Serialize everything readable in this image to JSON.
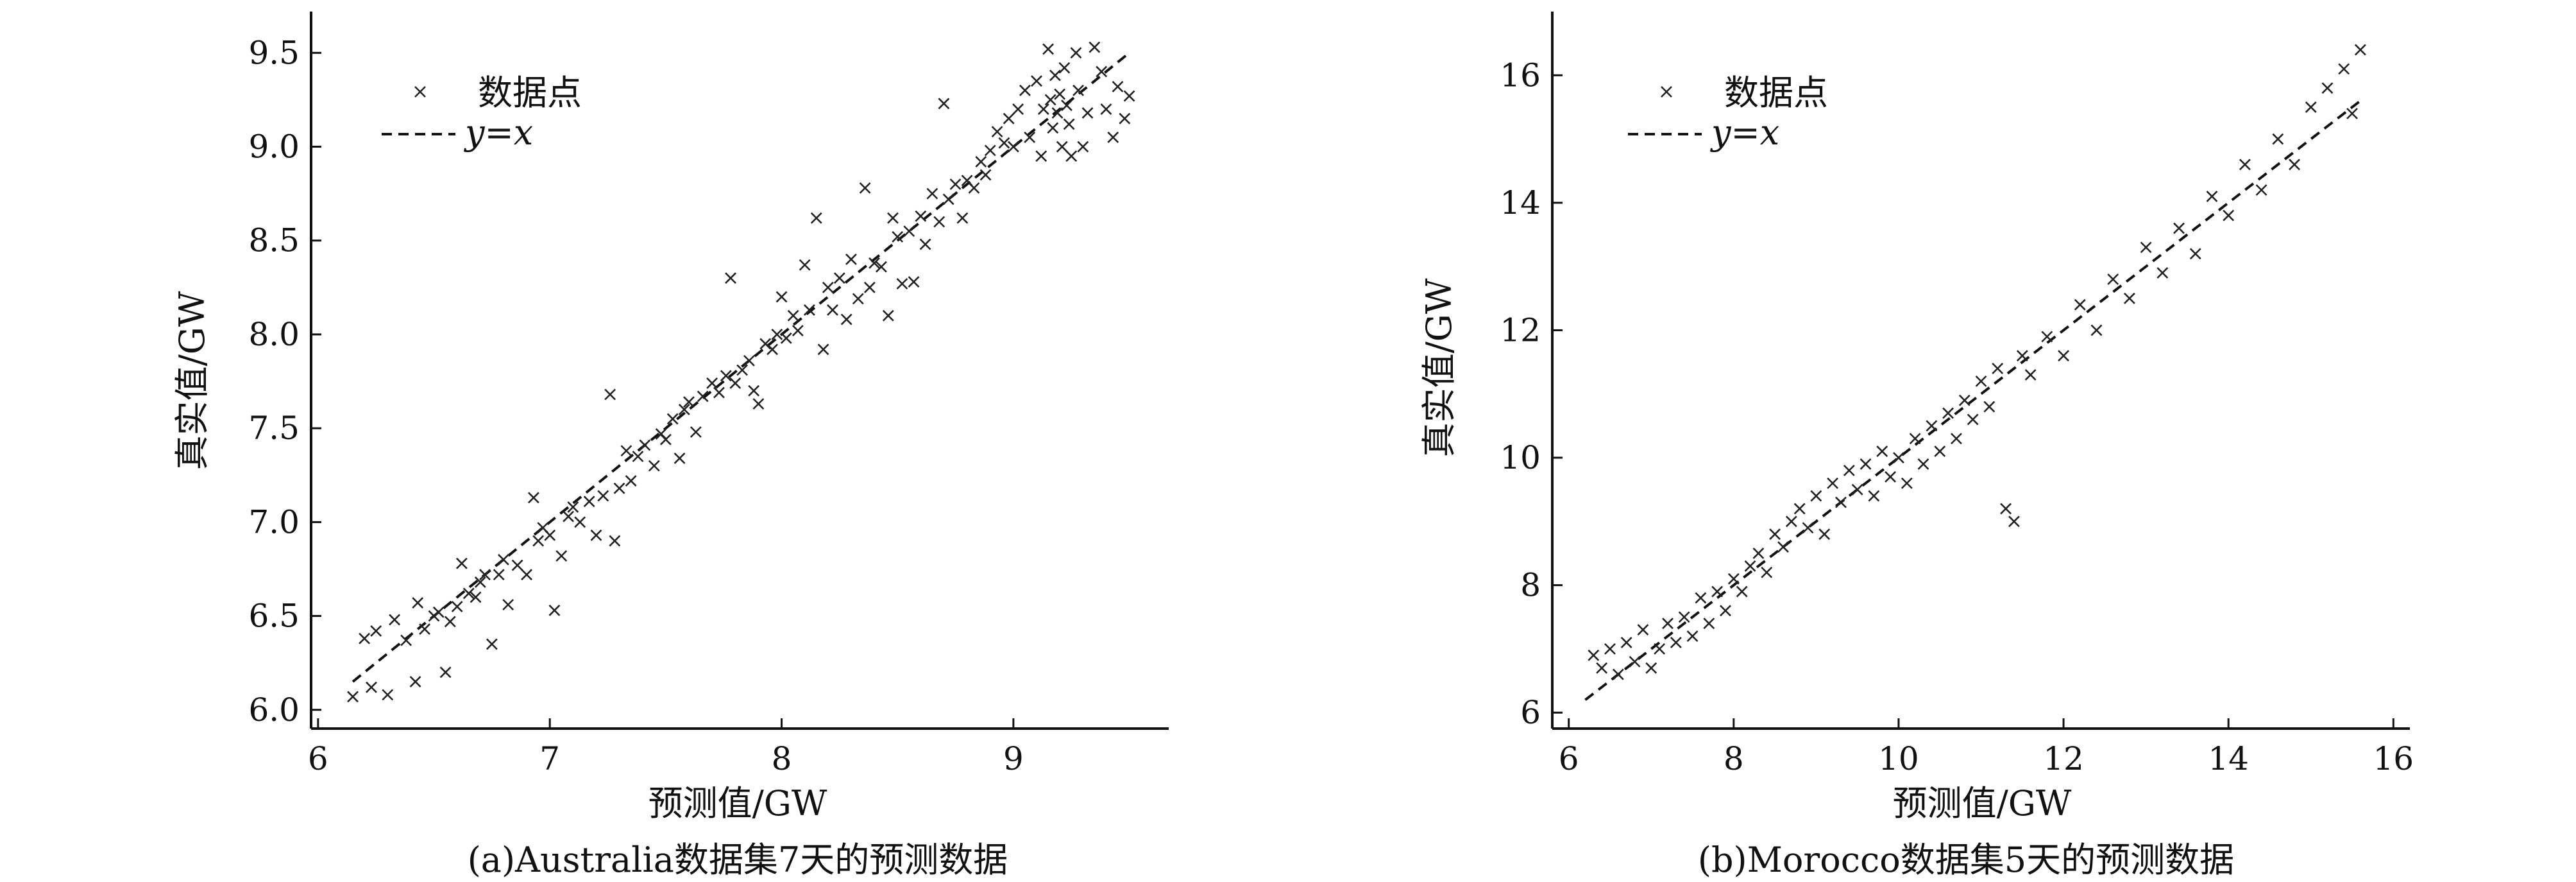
{
  "chart_data": [
    {
      "type": "scatter",
      "caption": "(a)Australia数据集7天的预测数据",
      "xlabel": "预测值/GW",
      "ylabel": "真实值/GW",
      "xlim": [
        5.97,
        9.67
      ],
      "ylim": [
        5.9,
        9.72
      ],
      "xticks": [
        6,
        7,
        8,
        9
      ],
      "yticks": [
        6.0,
        6.5,
        7.0,
        7.5,
        8.0,
        8.5,
        9.0,
        9.5
      ],
      "xtick_labels": [
        "6",
        "7",
        "8",
        "9"
      ],
      "ytick_labels": [
        "6.0",
        "6.5",
        "7.0",
        "7.5",
        "8.0",
        "8.5",
        "9.0",
        "9.5"
      ],
      "legend": {
        "position": "top-left",
        "entries": [
          {
            "label": "数据点",
            "marker": "x"
          },
          {
            "label": "y=x",
            "style": "dashed"
          }
        ]
      },
      "reference_line": {
        "label": "y=x",
        "x": [
          6.15,
          9.5
        ],
        "y": [
          6.15,
          9.5
        ]
      },
      "series": [
        {
          "name": "数据点",
          "marker": "x",
          "points": [
            [
              6.15,
              6.07
            ],
            [
              6.2,
              6.38
            ],
            [
              6.25,
              6.42
            ],
            [
              6.23,
              6.12
            ],
            [
              6.3,
              6.08
            ],
            [
              6.33,
              6.48
            ],
            [
              6.38,
              6.37
            ],
            [
              6.42,
              6.15
            ],
            [
              6.43,
              6.57
            ],
            [
              6.46,
              6.43
            ],
            [
              6.5,
              6.5
            ],
            [
              6.52,
              6.52
            ],
            [
              6.55,
              6.2
            ],
            [
              6.57,
              6.47
            ],
            [
              6.6,
              6.55
            ],
            [
              6.62,
              6.78
            ],
            [
              6.65,
              6.62
            ],
            [
              6.68,
              6.6
            ],
            [
              6.7,
              6.68
            ],
            [
              6.72,
              6.72
            ],
            [
              6.75,
              6.35
            ],
            [
              6.78,
              6.72
            ],
            [
              6.8,
              6.8
            ],
            [
              6.82,
              6.56
            ],
            [
              6.86,
              6.77
            ],
            [
              6.9,
              6.72
            ],
            [
              6.93,
              7.13
            ],
            [
              6.95,
              6.9
            ],
            [
              6.97,
              6.97
            ],
            [
              7.0,
              6.93
            ],
            [
              7.02,
              6.53
            ],
            [
              7.05,
              6.82
            ],
            [
              7.08,
              7.03
            ],
            [
              7.1,
              7.08
            ],
            [
              7.13,
              7.0
            ],
            [
              7.17,
              7.11
            ],
            [
              7.2,
              6.93
            ],
            [
              7.23,
              7.14
            ],
            [
              7.26,
              7.68
            ],
            [
              7.28,
              6.9
            ],
            [
              7.3,
              7.18
            ],
            [
              7.33,
              7.38
            ],
            [
              7.35,
              7.22
            ],
            [
              7.38,
              7.35
            ],
            [
              7.41,
              7.41
            ],
            [
              7.45,
              7.3
            ],
            [
              7.48,
              7.47
            ],
            [
              7.5,
              7.44
            ],
            [
              7.53,
              7.55
            ],
            [
              7.56,
              7.34
            ],
            [
              7.58,
              7.6
            ],
            [
              7.6,
              7.64
            ],
            [
              7.63,
              7.48
            ],
            [
              7.66,
              7.67
            ],
            [
              7.7,
              7.74
            ],
            [
              7.73,
              7.69
            ],
            [
              7.76,
              7.78
            ],
            [
              7.78,
              8.3
            ],
            [
              7.8,
              7.74
            ],
            [
              7.83,
              7.81
            ],
            [
              7.86,
              7.86
            ],
            [
              7.88,
              7.7
            ],
            [
              7.9,
              7.63
            ],
            [
              7.93,
              7.95
            ],
            [
              7.96,
              7.92
            ],
            [
              7.98,
              8.0
            ],
            [
              8.0,
              8.2
            ],
            [
              8.02,
              7.98
            ],
            [
              8.05,
              8.1
            ],
            [
              8.07,
              8.02
            ],
            [
              8.1,
              8.37
            ],
            [
              8.12,
              8.13
            ],
            [
              8.15,
              8.62
            ],
            [
              8.18,
              7.92
            ],
            [
              8.2,
              8.25
            ],
            [
              8.22,
              8.13
            ],
            [
              8.25,
              8.3
            ],
            [
              8.28,
              8.08
            ],
            [
              8.3,
              8.4
            ],
            [
              8.33,
              8.19
            ],
            [
              8.36,
              8.78
            ],
            [
              8.38,
              8.25
            ],
            [
              8.4,
              8.38
            ],
            [
              8.43,
              8.36
            ],
            [
              8.46,
              8.1
            ],
            [
              8.48,
              8.62
            ],
            [
              8.5,
              8.52
            ],
            [
              8.52,
              8.27
            ],
            [
              8.55,
              8.55
            ],
            [
              8.57,
              8.28
            ],
            [
              8.6,
              8.63
            ],
            [
              8.62,
              8.48
            ],
            [
              8.65,
              8.75
            ],
            [
              8.68,
              8.6
            ],
            [
              8.7,
              9.23
            ],
            [
              8.72,
              8.72
            ],
            [
              8.75,
              8.8
            ],
            [
              8.78,
              8.62
            ],
            [
              8.8,
              8.82
            ],
            [
              8.83,
              8.78
            ],
            [
              8.86,
              8.92
            ],
            [
              8.88,
              8.85
            ],
            [
              8.9,
              8.98
            ],
            [
              8.93,
              9.08
            ],
            [
              8.96,
              9.02
            ],
            [
              8.98,
              9.15
            ],
            [
              9.0,
              9.0
            ],
            [
              9.02,
              9.2
            ],
            [
              9.05,
              9.3
            ],
            [
              9.07,
              9.05
            ],
            [
              9.1,
              9.35
            ],
            [
              9.12,
              8.95
            ],
            [
              9.13,
              9.2
            ],
            [
              9.15,
              9.52
            ],
            [
              9.16,
              9.25
            ],
            [
              9.17,
              9.1
            ],
            [
              9.18,
              9.38
            ],
            [
              9.19,
              9.18
            ],
            [
              9.2,
              9.28
            ],
            [
              9.21,
              9.0
            ],
            [
              9.22,
              9.42
            ],
            [
              9.23,
              9.22
            ],
            [
              9.24,
              9.12
            ],
            [
              9.25,
              8.95
            ],
            [
              9.27,
              9.5
            ],
            [
              9.28,
              9.3
            ],
            [
              9.3,
              9.0
            ],
            [
              9.32,
              9.18
            ],
            [
              9.35,
              9.53
            ],
            [
              9.38,
              9.4
            ],
            [
              9.4,
              9.2
            ],
            [
              9.43,
              9.05
            ],
            [
              9.45,
              9.32
            ],
            [
              9.48,
              9.15
            ],
            [
              9.5,
              9.27
            ]
          ]
        }
      ]
    },
    {
      "type": "scatter",
      "caption": "(b)Morocco数据集5天的预测数据",
      "xlabel": "预测值/GW",
      "ylabel": "真实值/GW",
      "xlim": [
        5.8,
        16.2
      ],
      "ylim": [
        5.75,
        17.0
      ],
      "xticks": [
        6,
        8,
        10,
        12,
        14,
        16
      ],
      "yticks": [
        6,
        8,
        10,
        12,
        14,
        16
      ],
      "xtick_labels": [
        "6",
        "8",
        "10",
        "12",
        "14",
        "16"
      ],
      "ytick_labels": [
        "6",
        "8",
        "10",
        "12",
        "14",
        "16"
      ],
      "legend": {
        "position": "top-left",
        "entries": [
          {
            "label": "数据点",
            "marker": "x"
          },
          {
            "label": "y=x",
            "style": "dashed"
          }
        ]
      },
      "reference_line": {
        "label": "y=x",
        "x": [
          6.2,
          15.6
        ],
        "y": [
          6.2,
          15.6
        ]
      },
      "series": [
        {
          "name": "数据点",
          "marker": "x",
          "points": [
            [
              6.3,
              6.9
            ],
            [
              6.4,
              6.7
            ],
            [
              6.5,
              7.0
            ],
            [
              6.6,
              6.6
            ],
            [
              6.7,
              7.1
            ],
            [
              6.8,
              6.8
            ],
            [
              6.9,
              7.3
            ],
            [
              7.0,
              6.7
            ],
            [
              7.1,
              7.0
            ],
            [
              7.2,
              7.4
            ],
            [
              7.3,
              7.1
            ],
            [
              7.4,
              7.5
            ],
            [
              7.5,
              7.2
            ],
            [
              7.6,
              7.8
            ],
            [
              7.7,
              7.4
            ],
            [
              7.8,
              7.9
            ],
            [
              7.9,
              7.6
            ],
            [
              8.0,
              8.1
            ],
            [
              8.1,
              7.9
            ],
            [
              8.2,
              8.3
            ],
            [
              8.3,
              8.5
            ],
            [
              8.4,
              8.2
            ],
            [
              8.5,
              8.8
            ],
            [
              8.6,
              8.6
            ],
            [
              8.7,
              9.0
            ],
            [
              8.8,
              9.2
            ],
            [
              8.9,
              8.9
            ],
            [
              9.0,
              9.4
            ],
            [
              9.1,
              8.8
            ],
            [
              9.2,
              9.6
            ],
            [
              9.3,
              9.3
            ],
            [
              9.4,
              9.8
            ],
            [
              9.5,
              9.5
            ],
            [
              9.6,
              9.9
            ],
            [
              9.7,
              9.4
            ],
            [
              9.8,
              10.1
            ],
            [
              9.9,
              9.7
            ],
            [
              10.0,
              10.0
            ],
            [
              10.1,
              9.6
            ],
            [
              10.2,
              10.3
            ],
            [
              10.3,
              9.9
            ],
            [
              10.4,
              10.5
            ],
            [
              10.5,
              10.1
            ],
            [
              10.6,
              10.7
            ],
            [
              10.7,
              10.3
            ],
            [
              10.8,
              10.9
            ],
            [
              10.9,
              10.6
            ],
            [
              11.0,
              11.2
            ],
            [
              11.1,
              10.8
            ],
            [
              11.2,
              11.4
            ],
            [
              11.3,
              9.2
            ],
            [
              11.4,
              9.0
            ],
            [
              11.5,
              11.6
            ],
            [
              11.6,
              11.3
            ],
            [
              11.8,
              11.9
            ],
            [
              12.0,
              11.6
            ],
            [
              12.2,
              12.4
            ],
            [
              12.4,
              12.0
            ],
            [
              12.6,
              12.8
            ],
            [
              12.8,
              12.5
            ],
            [
              13.0,
              13.3
            ],
            [
              13.2,
              12.9
            ],
            [
              13.4,
              13.6
            ],
            [
              13.6,
              13.2
            ],
            [
              13.8,
              14.1
            ],
            [
              14.0,
              13.8
            ],
            [
              14.2,
              14.6
            ],
            [
              14.4,
              14.2
            ],
            [
              14.6,
              15.0
            ],
            [
              14.8,
              14.6
            ],
            [
              15.0,
              15.5
            ],
            [
              15.2,
              15.8
            ],
            [
              15.4,
              16.1
            ],
            [
              15.5,
              15.4
            ],
            [
              15.6,
              16.4
            ]
          ]
        }
      ]
    }
  ]
}
